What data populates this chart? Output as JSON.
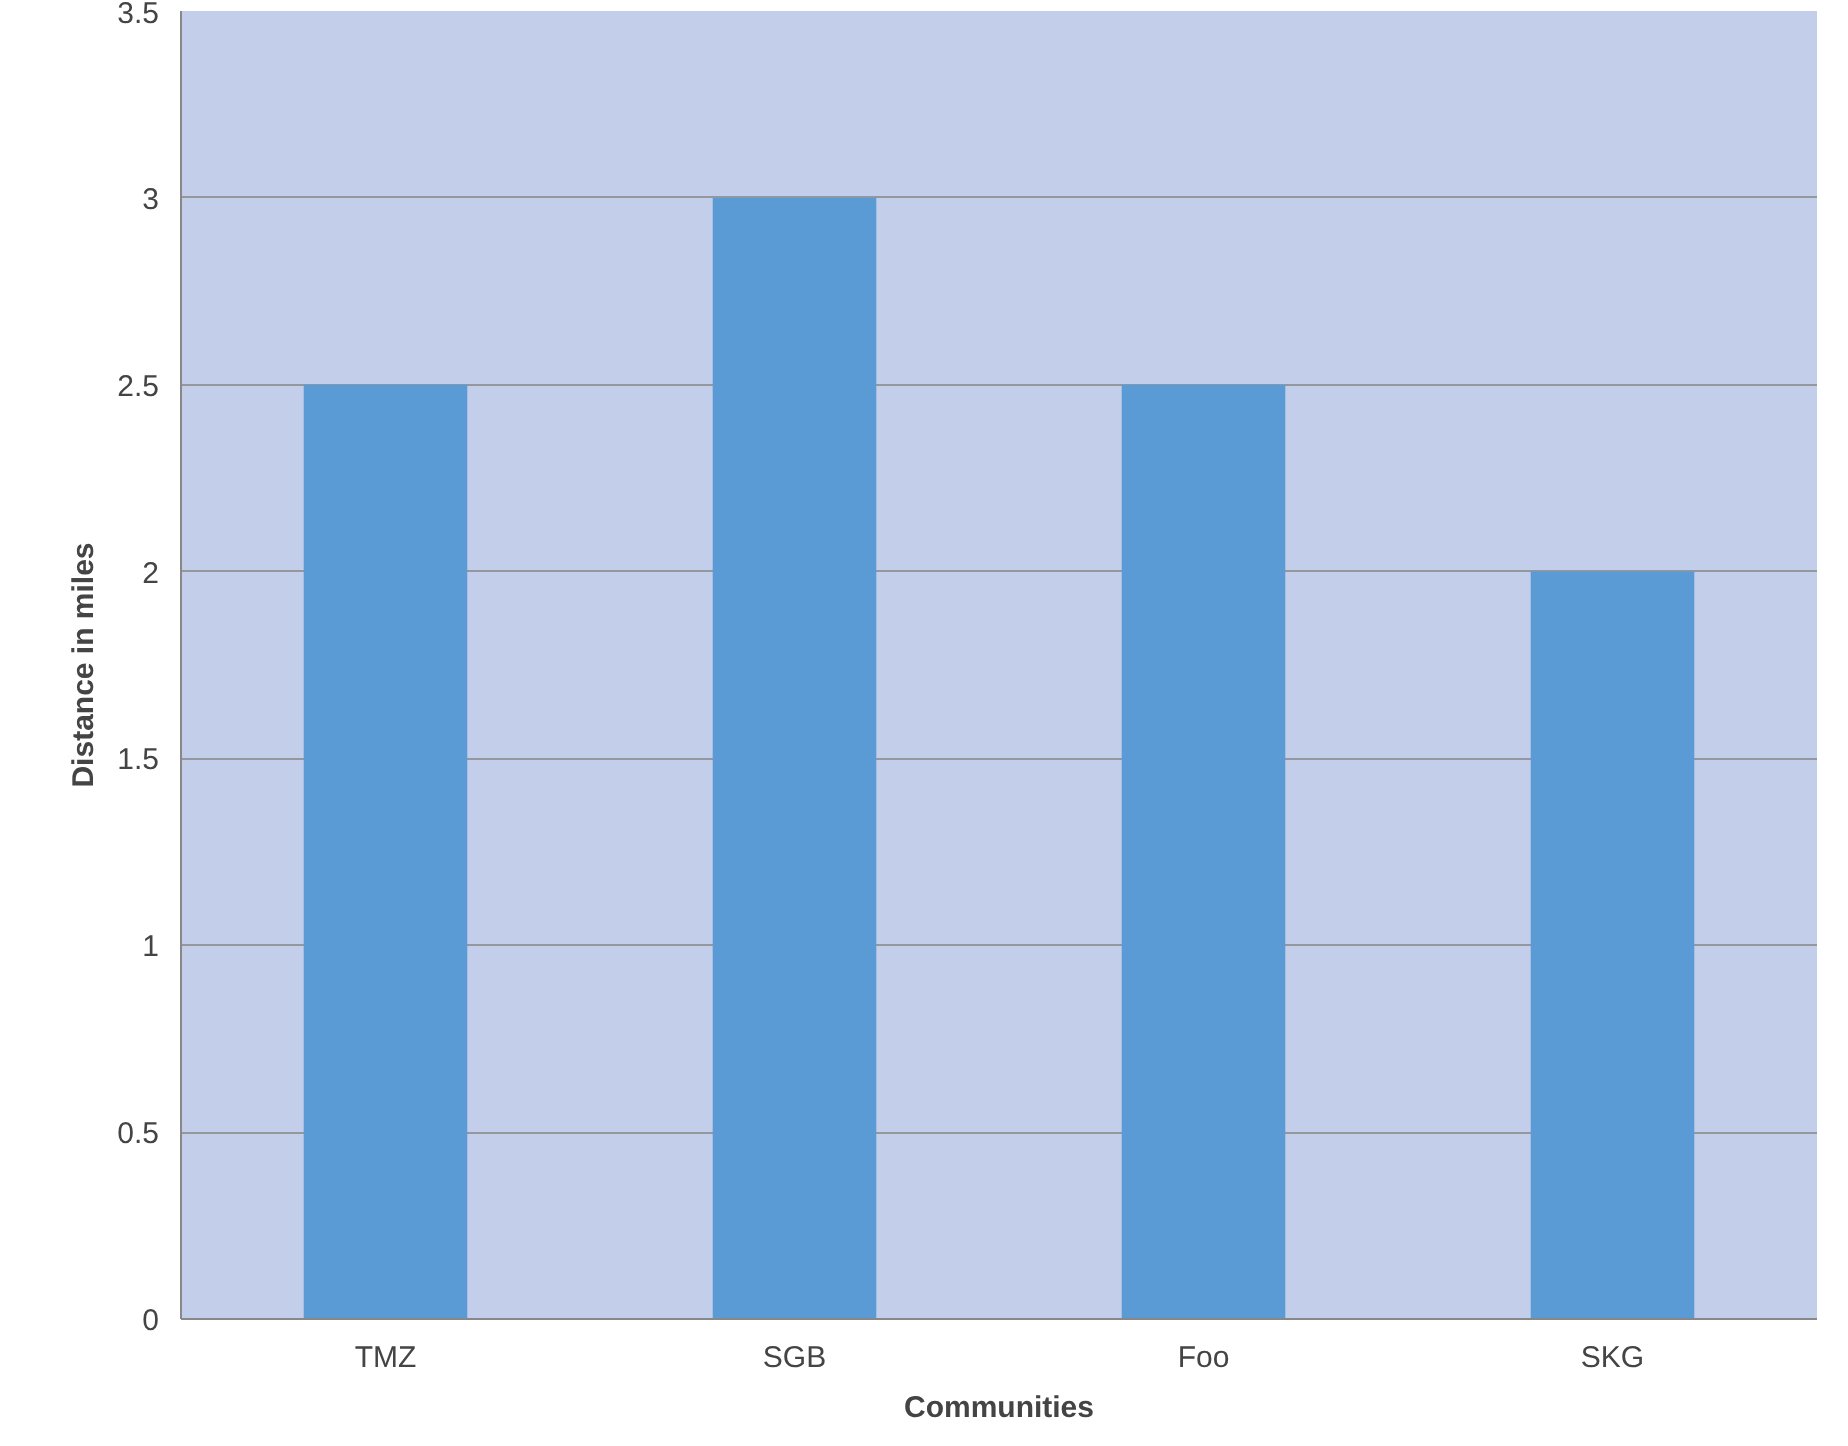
{
  "chart_data": {
    "type": "bar",
    "xlabel": "Communities",
    "ylabel": "Distance in miles",
    "categories": [
      "TMZ",
      "SGB",
      "Foo",
      "SKG"
    ],
    "values": [
      2.5,
      3,
      2.5,
      2
    ],
    "color": "#5b9bd5",
    "ylim": [
      0,
      3.5
    ],
    "yticks": [
      0,
      0.5,
      1,
      1.5,
      2,
      2.5,
      3,
      3.5
    ],
    "grid": "y"
  }
}
